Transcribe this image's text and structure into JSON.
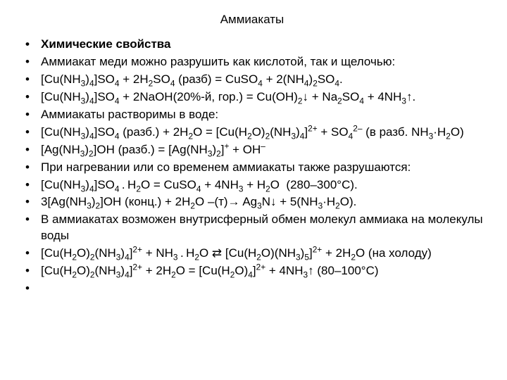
{
  "title": "Аммиакаты",
  "items": [
    {
      "bold": true,
      "html": "Химические свойства"
    },
    {
      "html": "Аммиакат меди можно разрушить как кислотой, так и щелочью:"
    },
    {
      "html": "[Cu(NH<sub>3</sub>)<sub>4</sub>]SO<sub>4</sub> + 2H<sub>2</sub>SO<sub>4</sub> (разб) = CuSO<sub>4</sub> + 2(NH<sub>4</sub>)<sub>2</sub>SO<sub>4</sub>."
    },
    {
      "html": "[Cu(NH<sub>3</sub>)<sub>4</sub>]SO<sub>4</sub> + 2NaOH(20%-й, гор.) = Cu(OH)<sub>2</sub>↓ + Na<sub>2</sub>SO<sub>4</sub> + 4NH<sub>3</sub>↑."
    },
    {
      "html": "Аммиакаты растворимы в воде:"
    },
    {
      "html": "[Cu(NH<sub>3</sub>)<sub>4</sub>]SO<sub>4</sub> (разб.) + 2H<sub>2</sub>O = [Cu(H<sub>2</sub>O)<sub>2</sub>(NH<sub>3</sub>)<sub>4</sub>]<sup>2+</sup> + SO<sub>4</sub><sup>2–</sup> (в разб. NH<sub>3</sub>·H<sub>2</sub>O)"
    },
    {
      "html": "[Ag(NH<sub>3</sub>)<sub>2</sub>]OH (разб.) = [Ag(NH<sub>3</sub>)<sub>2</sub>]<sup>+</sup> + OH<sup>–</sup>"
    },
    {
      "html": "При нагревании или со временем аммиакаты также разрушаются:"
    },
    {
      "html": "[Cu(NH<sub>3</sub>)<sub>4</sub>]SO<sub>4</sub>&thinsp;.&thinsp;H<sub>2</sub>O = CuSO<sub>4</sub> + 4NH<sub>3</sub> + H<sub>2</sub>O&nbsp; (280–300°C)."
    },
    {
      "html": "3[Ag(NH<sub>3</sub>)<sub>2</sub>]OH (конц.) + 2H<sub>2</sub>O –(т)→ Ag<sub>3</sub>N↓ + 5(NH<sub>3</sub>·H<sub>2</sub>O)."
    },
    {
      "html": "В аммиакатах возможен внутрисферный обмен молекул аммиака на молекулы воды"
    },
    {
      "html": "[Cu(H<sub>2</sub>O)<sub>2</sub>(NH<sub>3</sub>)<sub>4</sub>]<sup>2+</sup> + NH<sub>3</sub>&thinsp;.&thinsp;H<sub>2</sub>O ⇄ [Cu(H<sub>2</sub>O)(NH<sub>3</sub>)<sub>5</sub>]<sup>2+</sup> + 2H<sub>2</sub>O (на холоду)"
    },
    {
      "html": "[Cu(H<sub>2</sub>O)<sub>2</sub>(NH<sub>3</sub>)<sub>4</sub>]<sup>2+</sup> + 2H<sub>2</sub>O = [Cu(H<sub>2</sub>O)<sub>4</sub>]<sup>2+</sup> + 4NH<sub>3</sub>↑ (80–100°C)"
    },
    {
      "html": ""
    }
  ]
}
